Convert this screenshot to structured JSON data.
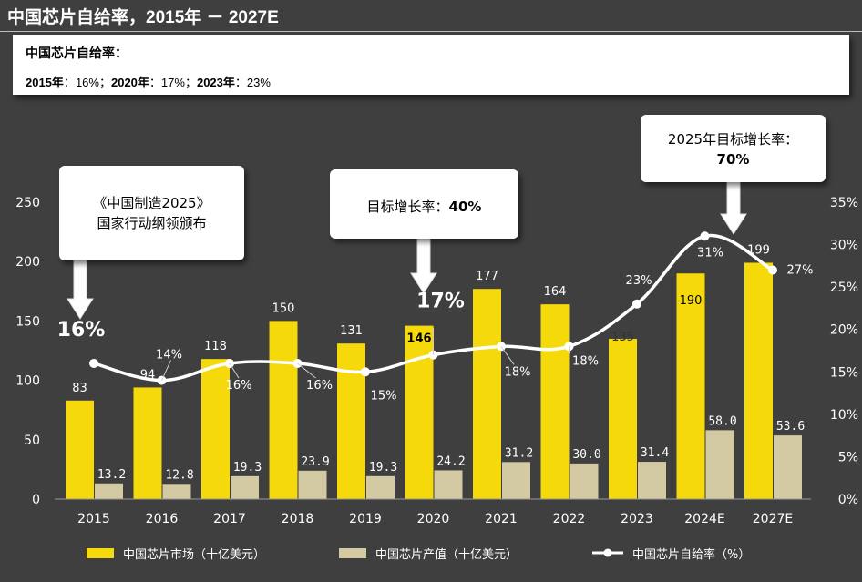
{
  "title": "中国芯片自给率，2015年 － 2027E",
  "summary": {
    "heading": "中国芯片自给率：",
    "rates": [
      {
        "year": "2015年",
        "sep": "：",
        "value": "16%",
        "end": "；"
      },
      {
        "year": "2020年",
        "sep": "：",
        "value": "17%",
        "end": "；"
      },
      {
        "year": "2023年",
        "sep": "：",
        "value": "23%",
        "end": ""
      }
    ]
  },
  "callouts": {
    "c1_line1": "《中国制造2025》",
    "c1_line2": "国家行动纲领颁布",
    "c2_text": "目标增长率：",
    "c2_value": "40%",
    "c3_line1": "2025年目标增长率：",
    "c3_value": "70%"
  },
  "colors": {
    "background": "#3f3f3f",
    "market_bar": "#f5d90a",
    "output_bar": "#d3c9a2",
    "rate_line": "#ffffff"
  },
  "chart_data": {
    "type": "bar",
    "categories": [
      "2015",
      "2016",
      "2017",
      "2018",
      "2019",
      "2020",
      "2021",
      "2022",
      "2023",
      "2024E",
      "2027E"
    ],
    "series": [
      {
        "name": "中国芯片市场（十亿美元）",
        "kind": "bar",
        "axis": "left",
        "values": [
          83,
          94,
          118,
          150,
          131,
          146,
          177,
          164,
          135,
          190,
          199
        ],
        "labels": [
          "83",
          "94",
          "118",
          "150",
          "131",
          "146",
          "177",
          "164",
          "135",
          "190",
          "199"
        ]
      },
      {
        "name": "中国芯片产值（十亿美元）",
        "kind": "bar",
        "axis": "left",
        "values": [
          13.2,
          12.8,
          19.3,
          23.9,
          19.3,
          24.2,
          31.2,
          30.0,
          31.4,
          58.0,
          53.6
        ],
        "labels": [
          "13.2",
          "12.8",
          "19.3",
          "23.9",
          "19.3",
          "24.2",
          "31.2",
          "30.0",
          "31.4",
          "58.0",
          "53.6"
        ]
      },
      {
        "name": "中国芯片自给率（%）",
        "kind": "line",
        "axis": "right",
        "values": [
          16,
          14,
          16,
          16,
          15,
          17,
          18,
          18,
          23,
          31,
          27
        ],
        "labels": [
          "16%",
          "14%",
          "16%",
          "16%",
          "15%",
          "17%",
          "18%",
          "18%",
          "23%",
          "31%",
          "27%"
        ]
      }
    ],
    "y_left": {
      "min": 0,
      "max": 250,
      "ticks": [
        "0",
        "50",
        "100",
        "150",
        "200",
        "250"
      ]
    },
    "y_right": {
      "min": 0,
      "max": 35,
      "ticks": [
        "0%",
        "5%",
        "10%",
        "15%",
        "20%",
        "25%",
        "30%",
        "35%"
      ]
    },
    "grid": false,
    "legend_position": "bottom"
  }
}
